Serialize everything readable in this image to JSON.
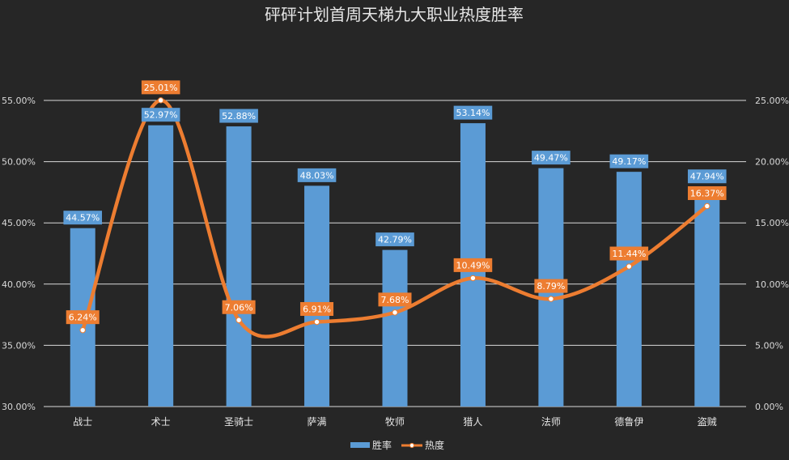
{
  "chart_data": {
    "type": "bar",
    "title": "砰砰计划首周天梯九大职业热度胜率",
    "categories": [
      "战士",
      "术士",
      "圣骑士",
      "萨满",
      "牧师",
      "猎人",
      "法师",
      "德鲁伊",
      "盗贼"
    ],
    "series": [
      {
        "name": "胜率",
        "type": "bar",
        "axis": "left",
        "values": [
          44.57,
          52.97,
          52.88,
          48.03,
          42.79,
          53.14,
          49.47,
          49.17,
          47.94
        ],
        "labels": [
          "44.57%",
          "52.97%",
          "52.88%",
          "48.03%",
          "42.79%",
          "53.14%",
          "49.47%",
          "49.17%",
          "47.94%"
        ],
        "color": "#5b9bd5"
      },
      {
        "name": "热度",
        "type": "line",
        "axis": "right",
        "values": [
          6.24,
          25.01,
          7.06,
          6.91,
          7.68,
          10.49,
          8.79,
          11.44,
          16.37
        ],
        "labels": [
          "6.24%",
          "25.01%",
          "7.06%",
          "6.91%",
          "7.68%",
          "10.49%",
          "8.79%",
          "11.44%",
          "16.37%"
        ],
        "color": "#ed7d31"
      }
    ],
    "y_left": {
      "min": 30,
      "max": 55,
      "ticks": [
        30,
        35,
        40,
        45,
        50,
        55
      ],
      "tick_labels": [
        "30.00%",
        "35.00%",
        "40.00%",
        "45.00%",
        "50.00%",
        "55.00%"
      ]
    },
    "y_right": {
      "min": 0,
      "max": 25,
      "ticks": [
        0,
        5,
        10,
        15,
        20,
        25
      ],
      "tick_labels": [
        "0.00%",
        "5.00%",
        "10.00%",
        "15.00%",
        "20.00%",
        "25.00%"
      ]
    },
    "grid": true,
    "legend_position": "bottom",
    "colors": {
      "background": "#262626",
      "grid": "#d9d9d9",
      "bar": "#5b9bd5",
      "line": "#ed7d31"
    }
  }
}
